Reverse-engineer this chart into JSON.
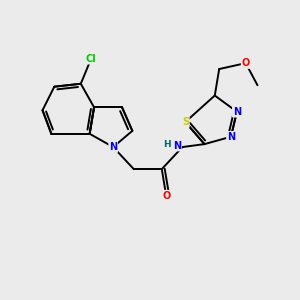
{
  "background_color": "#ebebeb",
  "bond_color": "#000000",
  "atom_colors": {
    "Cl": "#00cc00",
    "N": "#0000ff",
    "O": "#ff0000",
    "S": "#cccc00",
    "H": "#006666",
    "C": "#000000"
  },
  "figsize": [
    3.0,
    3.0
  ],
  "dpi": 100,
  "lw": 1.4,
  "fs": 7.0
}
